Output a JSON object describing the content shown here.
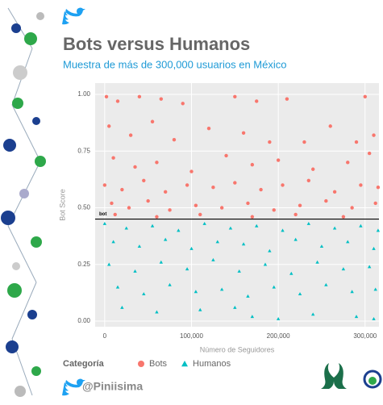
{
  "chart_data": {
    "type": "scatter",
    "title": "Bots versus Humanos",
    "subtitle": "Muestra de más de 300,000 usuarios en México",
    "x_label": "Número de Seguidores",
    "y_label": "Bot Score",
    "legend_title": "Categoría",
    "xlim": [
      -11000,
      316000
    ],
    "ylim": [
      -0.025,
      1.05
    ],
    "xticks": [
      0,
      {
        "value": 100000,
        "label": "100,000"
      },
      {
        "value": 200000,
        "label": "200,000"
      },
      {
        "value": 300000,
        "label": "300,000"
      }
    ],
    "yticks": [
      {
        "value": 0,
        "label": "0.00"
      },
      {
        "value": 0.25,
        "label": "0.25"
      },
      {
        "value": 0.5,
        "label": "0.50"
      },
      {
        "value": 0.75,
        "label": "0.75"
      },
      {
        "value": 1,
        "label": "1.00"
      }
    ],
    "grid": true,
    "threshold": {
      "value": 0.45,
      "label": "bot"
    },
    "series": [
      {
        "name": "Bots",
        "color": "#F8766D",
        "marker": "circle",
        "x": [
          2000,
          15000,
          40000,
          65000,
          90000,
          150000,
          175000,
          210000,
          300000,
          5000,
          30000,
          55000,
          80000,
          120000,
          160000,
          190000,
          230000,
          260000,
          290000,
          310000,
          10000,
          35000,
          60000,
          100000,
          140000,
          170000,
          200000,
          240000,
          280000,
          305000,
          0,
          20000,
          45000,
          70000,
          95000,
          125000,
          150000,
          180000,
          205000,
          235000,
          265000,
          295000,
          315000,
          8000,
          28000,
          50000,
          75000,
          105000,
          135000,
          165000,
          195000,
          225000,
          255000,
          285000,
          312000,
          12000,
          60000,
          110000,
          170000,
          220000,
          275000
        ],
        "values": [
          0.99,
          0.97,
          0.99,
          0.98,
          0.96,
          0.99,
          0.97,
          0.98,
          0.99,
          0.86,
          0.82,
          0.88,
          0.8,
          0.85,
          0.83,
          0.79,
          0.79,
          0.86,
          0.79,
          0.82,
          0.72,
          0.68,
          0.7,
          0.66,
          0.73,
          0.69,
          0.71,
          0.67,
          0.7,
          0.74,
          0.6,
          0.58,
          0.62,
          0.57,
          0.6,
          0.59,
          0.61,
          0.58,
          0.6,
          0.62,
          0.57,
          0.6,
          0.59,
          0.52,
          0.5,
          0.53,
          0.49,
          0.51,
          0.5,
          0.52,
          0.49,
          0.51,
          0.53,
          0.5,
          0.52,
          0.47,
          0.46,
          0.47,
          0.46,
          0.47,
          0.46
        ]
      },
      {
        "name": "Humanos",
        "color": "#00BFC4",
        "marker": "triangle",
        "x": [
          0,
          25000,
          55000,
          85000,
          115000,
          145000,
          175000,
          205000,
          235000,
          265000,
          295000,
          315000,
          10000,
          40000,
          70000,
          100000,
          130000,
          160000,
          190000,
          220000,
          250000,
          280000,
          310000,
          5000,
          35000,
          65000,
          95000,
          125000,
          155000,
          185000,
          215000,
          245000,
          275000,
          305000,
          15000,
          45000,
          75000,
          105000,
          135000,
          165000,
          195000,
          225000,
          255000,
          285000,
          312000,
          20000,
          60000,
          110000,
          150000,
          170000,
          200000,
          240000,
          290000,
          310000
        ],
        "values": [
          0.43,
          0.41,
          0.42,
          0.4,
          0.43,
          0.41,
          0.42,
          0.4,
          0.43,
          0.41,
          0.42,
          0.4,
          0.35,
          0.33,
          0.36,
          0.32,
          0.35,
          0.34,
          0.31,
          0.36,
          0.33,
          0.35,
          0.32,
          0.25,
          0.22,
          0.26,
          0.23,
          0.27,
          0.22,
          0.25,
          0.21,
          0.26,
          0.23,
          0.24,
          0.15,
          0.12,
          0.16,
          0.13,
          0.14,
          0.11,
          0.15,
          0.12,
          0.16,
          0.13,
          0.14,
          0.06,
          0.04,
          0.05,
          0.06,
          0.02,
          0.01,
          0.03,
          0.02,
          0.01
        ]
      }
    ]
  },
  "footer": {
    "handle": "@Piniisima"
  }
}
